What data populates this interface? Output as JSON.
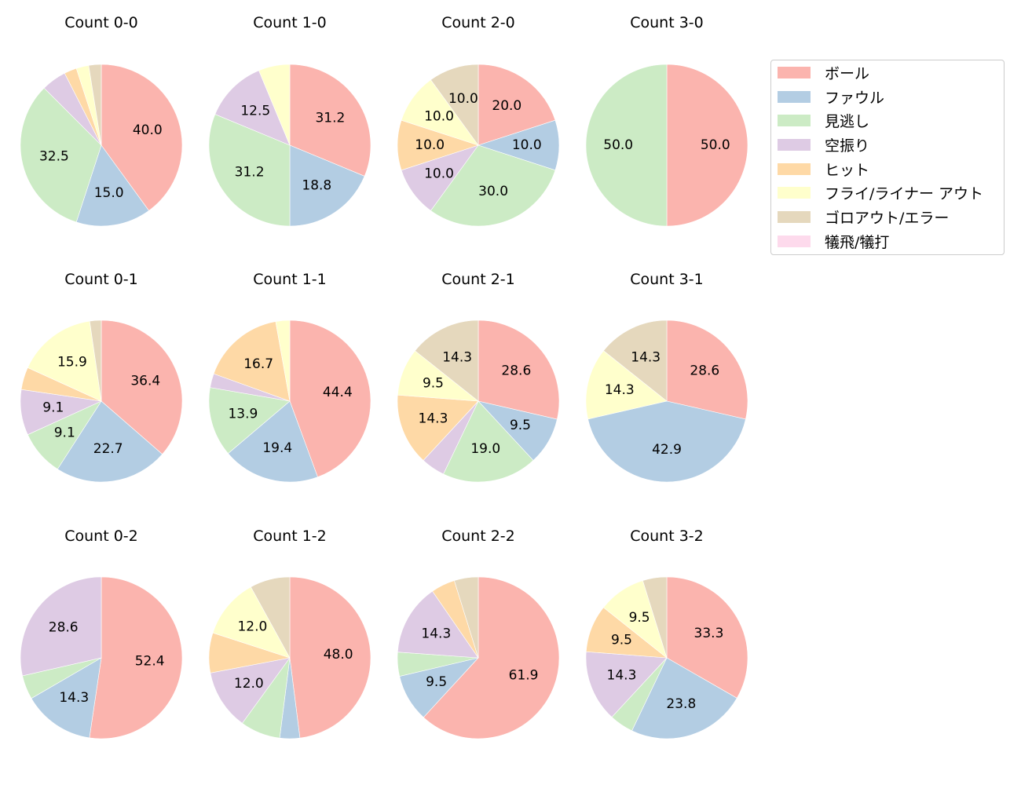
{
  "chart_data": {
    "type": "pie",
    "layout": {
      "rows": 3,
      "cols": 4,
      "start_angle": 90,
      "direction": "clockwise",
      "label_threshold_pct": 9
    },
    "categories": [
      "ボール",
      "ファウル",
      "見逃し",
      "空振り",
      "ヒット",
      "フライ/ライナー アウト",
      "ゴロアウト/エラー",
      "犠飛/犠打"
    ],
    "colors": [
      "#fbb4ae",
      "#b3cde3",
      "#ccebc5",
      "#decbe4",
      "#fed9a6",
      "#ffffcc",
      "#e5d8bd",
      "#fddaec"
    ],
    "legend": {
      "position": "upper right outside",
      "entries": [
        "ボール",
        "ファウル",
        "見逃し",
        "空振り",
        "ヒット",
        "フライ/ライナー アウト",
        "ゴロアウト/エラー",
        "犠飛/犠打"
      ]
    },
    "charts": [
      {
        "title": "Count 0-0",
        "values": [
          40.0,
          15.0,
          32.5,
          5.0,
          2.5,
          2.5,
          2.5,
          0
        ],
        "labels": [
          "40.0",
          "15.0",
          "32.5",
          null,
          null,
          null,
          null,
          null
        ]
      },
      {
        "title": "Count 1-0",
        "values": [
          31.25,
          18.75,
          31.25,
          12.5,
          0,
          6.25,
          0,
          0
        ],
        "labels": [
          "31.2",
          "18.8",
          "31.2",
          "12.5",
          null,
          null,
          null,
          null
        ]
      },
      {
        "title": "Count 2-0",
        "values": [
          20.0,
          10.0,
          30.0,
          10.0,
          10.0,
          10.0,
          10.0,
          0
        ],
        "labels": [
          "20.0",
          "10.0",
          "30.0",
          "10.0",
          "10.0",
          "10.0",
          "10.0",
          null
        ]
      },
      {
        "title": "Count 3-0",
        "values": [
          50.0,
          0,
          50.0,
          0,
          0,
          0,
          0,
          0
        ],
        "labels": [
          "50.0",
          null,
          "50.0",
          null,
          null,
          null,
          null,
          null
        ]
      },
      {
        "title": "Count 0-1",
        "values": [
          36.4,
          22.7,
          9.1,
          9.1,
          4.5,
          15.9,
          2.3,
          0
        ],
        "labels": [
          "36.4",
          "22.7",
          "9.1",
          "9.1",
          null,
          "15.9",
          null,
          null
        ]
      },
      {
        "title": "Count 1-1",
        "values": [
          44.4,
          19.4,
          13.9,
          2.8,
          16.7,
          2.8,
          0,
          0
        ],
        "labels": [
          "44.4",
          "19.4",
          "13.9",
          null,
          "16.7",
          null,
          null,
          null
        ]
      },
      {
        "title": "Count 2-1",
        "values": [
          28.6,
          9.5,
          19.0,
          4.8,
          14.3,
          9.5,
          14.3,
          0
        ],
        "labels": [
          "28.6",
          "9.5",
          "19.0",
          null,
          "14.3",
          "9.5",
          "14.3",
          null
        ]
      },
      {
        "title": "Count 3-1",
        "values": [
          28.6,
          42.9,
          0,
          0,
          0,
          14.3,
          14.3,
          0
        ],
        "labels": [
          "28.6",
          "42.9",
          null,
          null,
          null,
          "14.3",
          "14.3",
          null
        ]
      },
      {
        "title": "Count 0-2",
        "values": [
          52.4,
          14.3,
          4.8,
          28.6,
          0,
          0,
          0,
          0
        ],
        "labels": [
          "52.4",
          "14.3",
          null,
          "28.6",
          null,
          null,
          null,
          null
        ]
      },
      {
        "title": "Count 1-2",
        "values": [
          48.0,
          4.0,
          8.0,
          12.0,
          8.0,
          12.0,
          8.0,
          0
        ],
        "labels": [
          "48.0",
          null,
          null,
          "12.0",
          null,
          "12.0",
          null,
          null
        ]
      },
      {
        "title": "Count 2-2",
        "values": [
          61.9,
          9.5,
          4.8,
          14.3,
          4.8,
          0,
          4.8,
          0
        ],
        "labels": [
          "61.9",
          "9.5",
          null,
          "14.3",
          null,
          null,
          null,
          null
        ]
      },
      {
        "title": "Count 3-2",
        "values": [
          33.3,
          23.8,
          4.8,
          14.3,
          9.5,
          9.5,
          4.8,
          0
        ],
        "labels": [
          "33.3",
          "23.8",
          null,
          "14.3",
          "9.5",
          "9.5",
          null,
          null
        ]
      }
    ]
  }
}
